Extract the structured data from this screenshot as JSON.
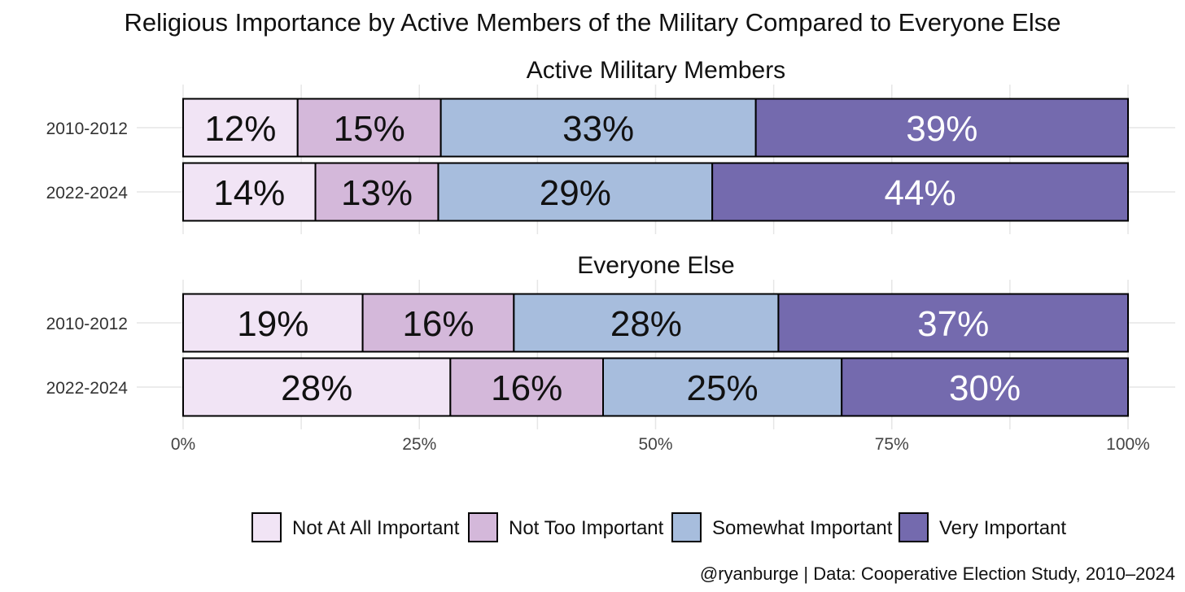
{
  "chart_data": {
    "type": "bar",
    "orientation": "horizontal",
    "stacked": true,
    "title": "Religious Importance by Active Members of the Military Compared to Everyone Else",
    "caption": "@ryanburge | Data: Cooperative Election Study, 2010–2024",
    "xlim": [
      0,
      100
    ],
    "x_ticks": [
      0,
      25,
      50,
      75,
      100
    ],
    "x_tick_labels": [
      "0%",
      "25%",
      "50%",
      "75%",
      "100%"
    ],
    "categories": [
      "Not At All Important",
      "Not Too Important",
      "Somewhat Important",
      "Very Important"
    ],
    "colors": [
      "#f1e4f5",
      "#d4b8da",
      "#a7bddd",
      "#746aae"
    ],
    "label_colors": [
      "#111111",
      "#111111",
      "#111111",
      "#ffffff"
    ],
    "legend_position": "bottom",
    "facets": [
      {
        "name": "Active Military Members",
        "rows": [
          {
            "label": "2010-2012",
            "values": [
              12,
              15,
              33,
              39
            ],
            "labels": [
              "12%",
              "15%",
              "33%",
              "39%"
            ]
          },
          {
            "label": "2022-2024",
            "values": [
              14,
              13,
              29,
              44
            ],
            "labels": [
              "14%",
              "13%",
              "29%",
              "44%"
            ]
          }
        ]
      },
      {
        "name": "Everyone Else",
        "rows": [
          {
            "label": "2010-2012",
            "values": [
              19,
              16,
              28,
              37
            ],
            "labels": [
              "19%",
              "16%",
              "28%",
              "37%"
            ]
          },
          {
            "label": "2022-2024",
            "values": [
              28,
              16,
              25,
              30
            ],
            "labels": [
              "28%",
              "16%",
              "25%",
              "30%"
            ]
          }
        ]
      }
    ]
  }
}
